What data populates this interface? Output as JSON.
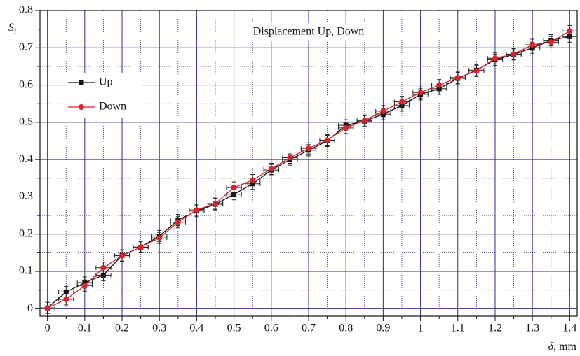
{
  "chart_data": {
    "type": "line",
    "annotation": "Displacement Up, Down",
    "ylabel": [
      "S",
      "i"
    ],
    "xlabel": [
      "δ",
      ", mm"
    ],
    "x": [
      0,
      0.05,
      0.1,
      0.15,
      0.2,
      0.25,
      0.3,
      0.35,
      0.4,
      0.45,
      0.5,
      0.55,
      0.6,
      0.65,
      0.7,
      0.75,
      0.8,
      0.85,
      0.9,
      0.95,
      1.0,
      1.05,
      1.1,
      1.15,
      1.2,
      1.25,
      1.3,
      1.35,
      1.4
    ],
    "series": [
      {
        "name": "Up",
        "color": "#111111",
        "marker": "square",
        "xerr": 0.02,
        "yerr": 0.015,
        "values": [
          0.002,
          0.045,
          0.07,
          0.09,
          0.143,
          0.165,
          0.195,
          0.238,
          0.262,
          0.28,
          0.307,
          0.335,
          0.372,
          0.4,
          0.425,
          0.45,
          0.492,
          0.503,
          0.522,
          0.545,
          0.575,
          0.59,
          0.618,
          0.64,
          0.668,
          0.682,
          0.7,
          0.72,
          0.73
        ]
      },
      {
        "name": "Down",
        "color": "#e0202a",
        "marker": "circle",
        "xerr": 0.02,
        "yerr": 0.015,
        "values": [
          0.002,
          0.025,
          0.062,
          0.11,
          0.142,
          0.165,
          0.19,
          0.232,
          0.265,
          0.282,
          0.325,
          0.345,
          0.375,
          0.405,
          0.43,
          0.452,
          0.485,
          0.505,
          0.53,
          0.555,
          0.58,
          0.6,
          0.62,
          0.638,
          0.672,
          0.683,
          0.708,
          0.715,
          0.745
        ]
      }
    ],
    "xlim": [
      -0.02,
      1.42
    ],
    "ylim": [
      -0.02,
      0.8
    ],
    "xticks": [
      0,
      0.1,
      0.2,
      0.3,
      0.4,
      0.5,
      0.6,
      0.7,
      0.8,
      0.9,
      1,
      1.1,
      1.2,
      1.3,
      1.4
    ],
    "yticks": [
      0,
      0.1,
      0.2,
      0.3,
      0.4,
      0.5,
      0.6,
      0.7,
      0.8
    ],
    "xminorticks": [
      0.05,
      0.15,
      0.25,
      0.35,
      0.45,
      0.55,
      0.65,
      0.75,
      0.85,
      0.95,
      1.05,
      1.15,
      1.25,
      1.35
    ],
    "yminorticks": [
      0.05,
      0.15,
      0.25,
      0.35,
      0.45,
      0.55,
      0.65,
      0.75
    ],
    "grid": true,
    "grid_color": "#2e2e8a",
    "legend": "upper left"
  }
}
